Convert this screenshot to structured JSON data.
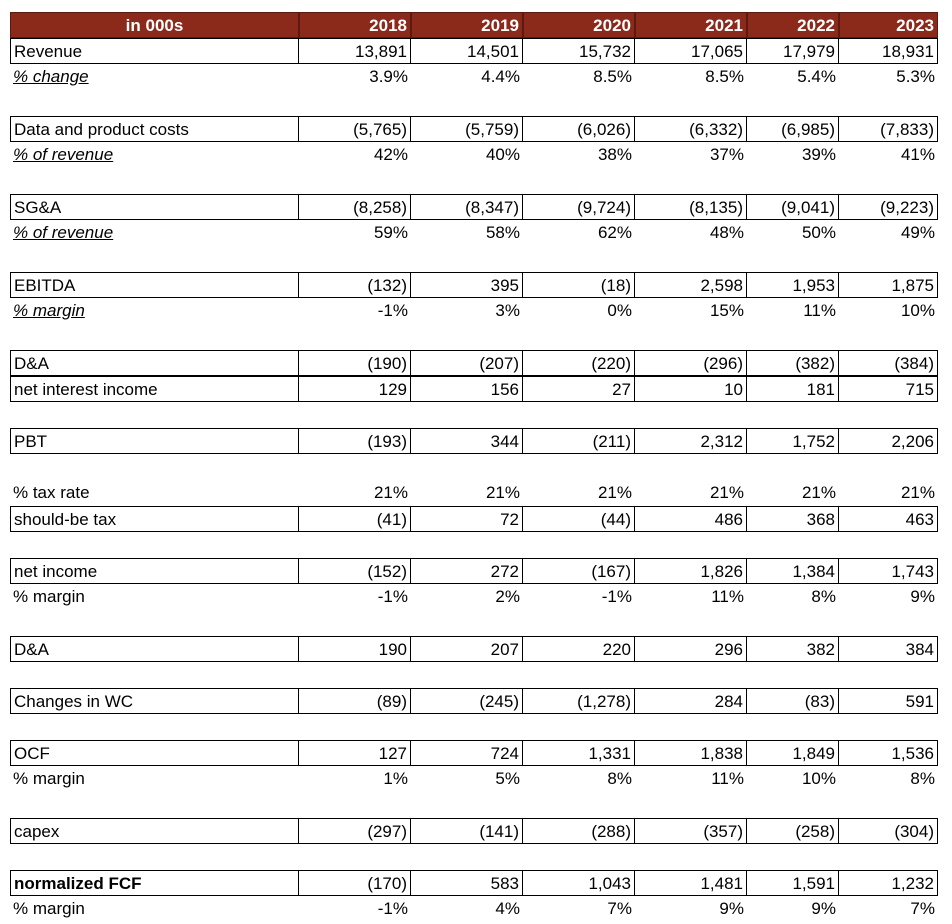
{
  "header": {
    "title": "in 000s",
    "years": [
      "2018",
      "2019",
      "2020",
      "2021",
      "2022",
      "2023"
    ]
  },
  "rows": [
    {
      "label": "Revenue",
      "values": [
        "13,891",
        "14,501",
        "15,732",
        "17,065",
        "17,979",
        "18,931"
      ]
    },
    {
      "label": "% change",
      "values": [
        "3.9%",
        "4.4%",
        "8.5%",
        "8.5%",
        "5.4%",
        "5.3%"
      ]
    },
    {
      "label": "Data and product costs",
      "values": [
        "(5,765)",
        "(5,759)",
        "(6,026)",
        "(6,332)",
        "(6,985)",
        "(7,833)"
      ]
    },
    {
      "label": "% of revenue",
      "values": [
        "42%",
        "40%",
        "38%",
        "37%",
        "39%",
        "41%"
      ]
    },
    {
      "label": "SG&A",
      "values": [
        "(8,258)",
        "(8,347)",
        "(9,724)",
        "(8,135)",
        "(9,041)",
        "(9,223)"
      ]
    },
    {
      "label": "% of revenue",
      "values": [
        "59%",
        "58%",
        "62%",
        "48%",
        "50%",
        "49%"
      ]
    },
    {
      "label": "EBITDA",
      "values": [
        "(132)",
        "395",
        "(18)",
        "2,598",
        "1,953",
        "1,875"
      ]
    },
    {
      "label": "% margin",
      "values": [
        "-1%",
        "3%",
        "0%",
        "15%",
        "11%",
        "10%"
      ]
    },
    {
      "label": "D&A",
      "values": [
        "(190)",
        "(207)",
        "(220)",
        "(296)",
        "(382)",
        "(384)"
      ]
    },
    {
      "label": "net interest income",
      "values": [
        "129",
        "156",
        "27",
        "10",
        "181",
        "715"
      ]
    },
    {
      "label": "PBT",
      "values": [
        "(193)",
        "344",
        "(211)",
        "2,312",
        "1,752",
        "2,206"
      ]
    },
    {
      "label": "% tax rate",
      "values": [
        "21%",
        "21%",
        "21%",
        "21%",
        "21%",
        "21%"
      ]
    },
    {
      "label": "should-be tax",
      "values": [
        "(41)",
        "72",
        "(44)",
        "486",
        "368",
        "463"
      ]
    },
    {
      "label": "net income",
      "values": [
        "(152)",
        "272",
        "(167)",
        "1,826",
        "1,384",
        "1,743"
      ]
    },
    {
      "label": "% margin",
      "values": [
        "-1%",
        "2%",
        "-1%",
        "11%",
        "8%",
        "9%"
      ]
    },
    {
      "label": "D&A",
      "values": [
        "190",
        "207",
        "220",
        "296",
        "382",
        "384"
      ]
    },
    {
      "label": "Changes in WC",
      "values": [
        "(89)",
        "(245)",
        "(1,278)",
        "284",
        "(83)",
        "591"
      ]
    },
    {
      "label": "OCF",
      "values": [
        "127",
        "724",
        "1,331",
        "1,838",
        "1,849",
        "1,536"
      ]
    },
    {
      "label": "% margin",
      "values": [
        "1%",
        "5%",
        "8%",
        "11%",
        "10%",
        "8%"
      ]
    },
    {
      "label": "capex",
      "values": [
        "(297)",
        "(141)",
        "(288)",
        "(357)",
        "(258)",
        "(304)"
      ]
    },
    {
      "label": "normalized FCF",
      "values": [
        "(170)",
        "583",
        "1,043",
        "1,481",
        "1,591",
        "1,232"
      ]
    },
    {
      "label": "% margin",
      "values": [
        "-1%",
        "4%",
        "7%",
        "9%",
        "9%",
        "7%"
      ]
    }
  ]
}
